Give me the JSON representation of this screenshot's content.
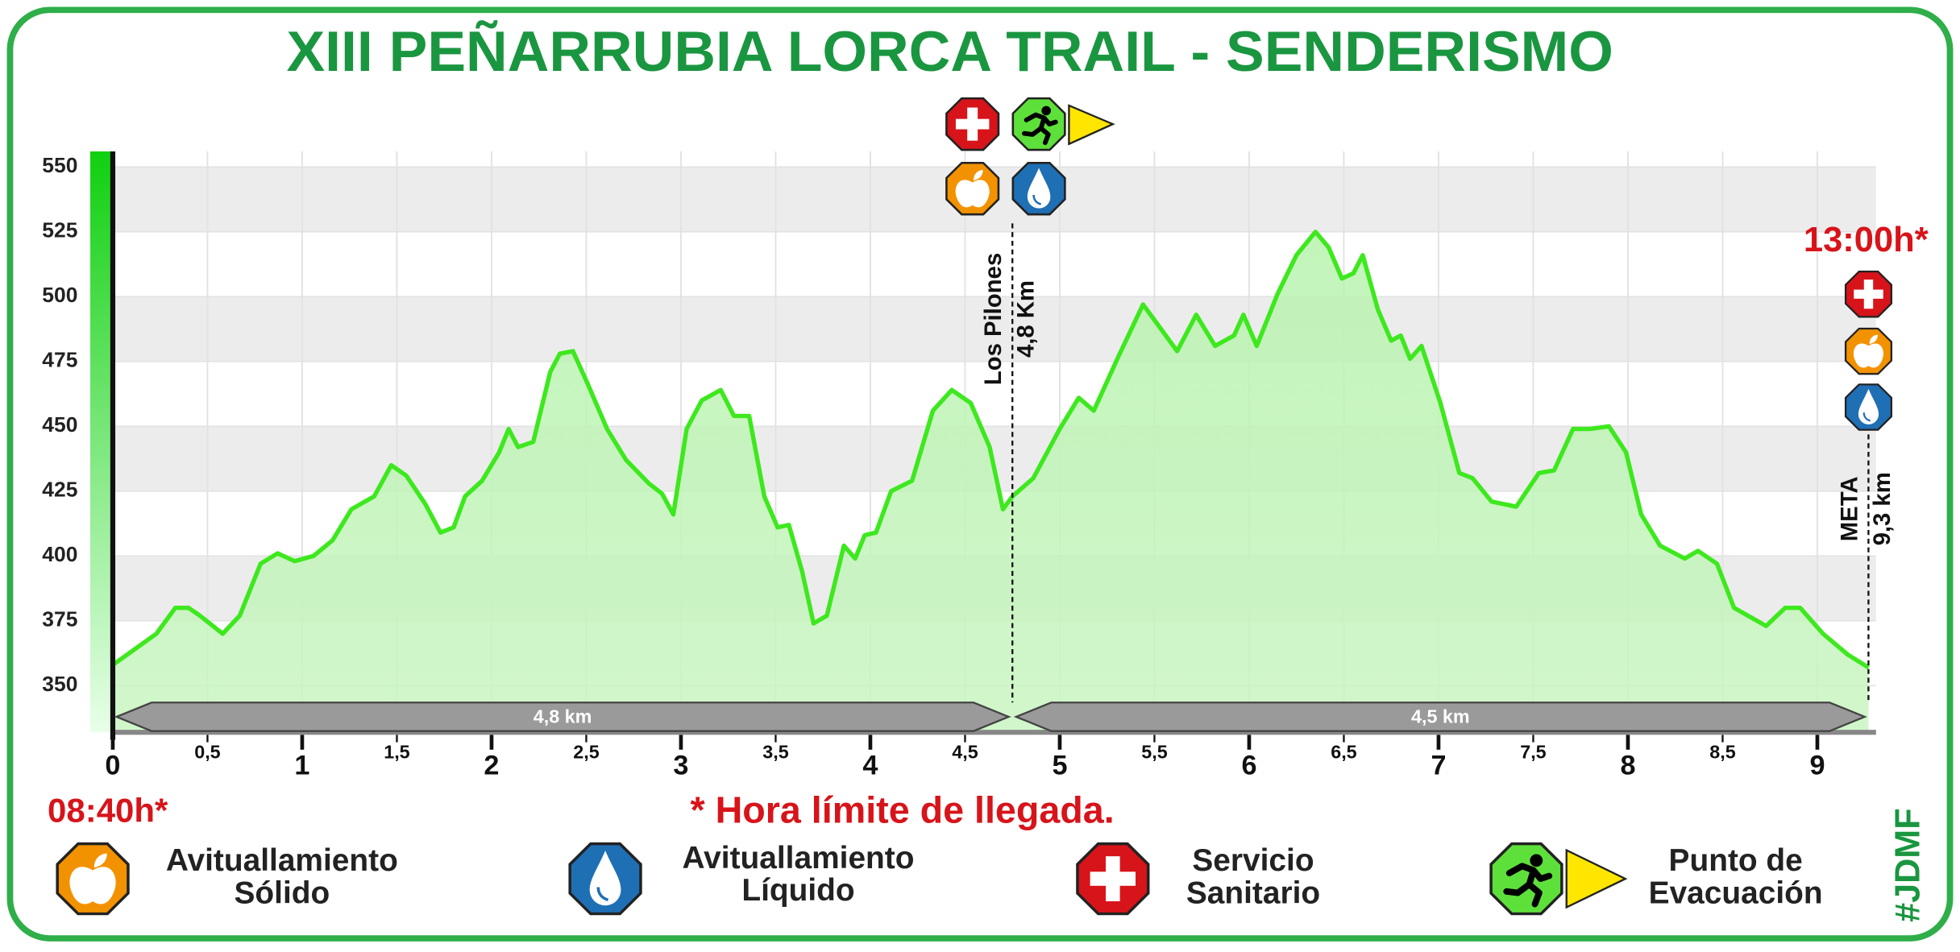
{
  "chart_data": {
    "type": "area",
    "title": "XIII PEÑARRUBIA LORCA TRAIL - SENDERISMO",
    "x": [
      0,
      0.23,
      0.33,
      0.4,
      0.46,
      0.58,
      0.67,
      0.78,
      0.87,
      0.96,
      1.06,
      1.16,
      1.26,
      1.38,
      1.47,
      1.55,
      1.65,
      1.73,
      1.8,
      1.86,
      1.95,
      2.04,
      2.09,
      2.14,
      2.22,
      2.31,
      2.36,
      2.43,
      2.51,
      2.61,
      2.71,
      2.83,
      2.9,
      2.96,
      3.03,
      3.11,
      3.21,
      3.28,
      3.36,
      3.44,
      3.51,
      3.57,
      3.64,
      3.7,
      3.77,
      3.86,
      3.92,
      3.97,
      4.03,
      4.11,
      4.22,
      4.33,
      4.43,
      4.53,
      4.63,
      4.7,
      4.75,
      4.86,
      5.0,
      5.1,
      5.18,
      5.31,
      5.44,
      5.52,
      5.62,
      5.72,
      5.82,
      5.92,
      5.97,
      6.04,
      6.15,
      6.25,
      6.35,
      6.42,
      6.49,
      6.55,
      6.6,
      6.68,
      6.75,
      6.8,
      6.85,
      6.91,
      7.01,
      7.11,
      7.18,
      7.28,
      7.41,
      7.53,
      7.61,
      7.71,
      7.8,
      7.9,
      7.99,
      8.07,
      8.17,
      8.3,
      8.37,
      8.47,
      8.56,
      8.73,
      8.83,
      8.91,
      9.03,
      9.16,
      9.27
    ],
    "values": [
      358,
      370,
      380,
      380,
      377,
      370,
      377,
      397,
      401,
      398,
      400,
      406,
      418,
      423,
      435,
      431,
      420,
      409,
      411,
      423,
      429,
      440,
      449,
      442,
      444,
      471,
      478,
      479,
      466,
      449,
      437,
      428,
      424,
      416,
      449,
      460,
      464,
      454,
      454,
      423,
      411,
      412,
      394,
      374,
      377,
      404,
      399,
      408,
      409,
      425,
      429,
      456,
      464,
      459,
      442,
      418,
      423,
      430,
      449,
      461,
      456,
      477,
      497,
      489,
      479,
      493,
      481,
      485,
      493,
      481,
      501,
      516,
      525,
      519,
      507,
      509,
      516,
      495,
      483,
      485,
      476,
      481,
      459,
      432,
      430,
      421,
      419,
      432,
      433,
      449,
      449,
      450,
      440,
      416,
      404,
      399,
      402,
      397,
      380,
      373,
      380,
      380,
      370,
      362,
      357
    ],
    "color": "#3ee81e",
    "xlim": [
      0,
      9.31
    ],
    "xticks": [
      0,
      {
        "value": 0.5,
        "label": "0,5"
      },
      1,
      {
        "value": 1.5,
        "label": "1,5"
      },
      2,
      {
        "value": 2.5,
        "label": "2,5"
      },
      3,
      {
        "value": 3.5,
        "label": "3,5"
      },
      4,
      {
        "value": 4.5,
        "label": "4,5"
      },
      5,
      {
        "value": 5.5,
        "label": "5,5"
      },
      6,
      {
        "value": 6.5,
        "label": "6,5"
      },
      7,
      {
        "value": 7.5,
        "label": "7,5"
      },
      8,
      {
        "value": 8.5,
        "label": "8,5"
      },
      9
    ],
    "ylim": [
      332,
      556
    ],
    "yticks": [
      350,
      375,
      400,
      425,
      450,
      475,
      500,
      525,
      550
    ],
    "grid": true,
    "annotations": [
      {
        "x": 4.75,
        "label": "Los Pilones",
        "sublabel": "4,8 Km"
      },
      {
        "x": 9.27,
        "label": "META",
        "sublabel": "9,3 km",
        "time": "13:00h*"
      }
    ],
    "segments": [
      "4,8 km",
      "4,5 km"
    ],
    "start_time": "08:40h*",
    "note": "* Hora límite de llegada.",
    "legend": [
      {
        "lines": [
          "Avituallamiento",
          "Sólido"
        ]
      },
      {
        "lines": [
          "Avituallamiento",
          "Líquido"
        ]
      },
      {
        "lines": [
          "Servicio",
          "Sanitario"
        ]
      },
      {
        "lines": [
          "Punto de",
          "Evacuación"
        ]
      }
    ],
    "tag": "#JDMF"
  }
}
